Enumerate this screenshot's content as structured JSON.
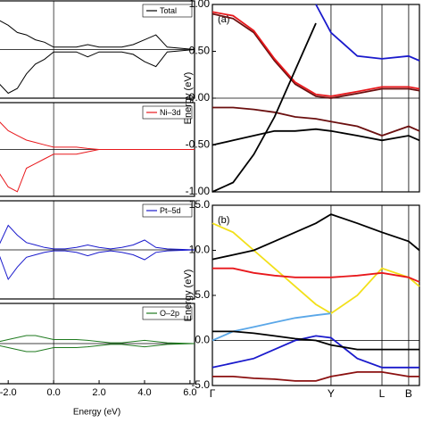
{
  "chart_data": [
    {
      "type": "line",
      "x": [
        -2.4,
        -2.0,
        -1.6,
        -1.2,
        -0.8,
        -0.4,
        0.0,
        0.5,
        1.0,
        1.5,
        2.0,
        2.5,
        3.0,
        3.5,
        4.0,
        4.5,
        5.0,
        6.2
      ],
      "xlim": [
        -2.4,
        6.2
      ],
      "ylim": [
        -1,
        1
      ],
      "legend": "top-right",
      "series": [
        {
          "name": "Total",
          "color": "#000000",
          "values": [
            0.6,
            0.5,
            0.35,
            0.3,
            0.2,
            0.15,
            0.05,
            0.05,
            0.05,
            0.1,
            0.05,
            0.05,
            0.05,
            0.1,
            0.2,
            0.3,
            0.05,
            0.0
          ]
        },
        {
          "color": "#000000",
          "values": [
            -0.7,
            -0.9,
            -0.8,
            -0.5,
            -0.3,
            -0.2,
            -0.05,
            -0.05,
            -0.05,
            -0.15,
            -0.05,
            -0.05,
            -0.05,
            -0.1,
            -0.25,
            -0.35,
            -0.05,
            0.0
          ]
        }
      ]
    },
    {
      "type": "line",
      "x": [
        -2.4,
        -2.0,
        -1.6,
        -1.2,
        -0.8,
        -0.4,
        0.0,
        0.5,
        1.0,
        1.5,
        2.0,
        2.5,
        3.0,
        3.5,
        4.0,
        4.5,
        5.0,
        6.2
      ],
      "xlim": [
        -2.4,
        6.2
      ],
      "ylim": [
        -1,
        1
      ],
      "legend": "top-right",
      "series": [
        {
          "name": "Ni–3d",
          "color": "#e8181c",
          "values": [
            0.6,
            0.4,
            0.3,
            0.2,
            0.15,
            0.1,
            0.05,
            0.05,
            0.05,
            0.02,
            0,
            0,
            0,
            0,
            0,
            0,
            0,
            0
          ]
        },
        {
          "color": "#e8181c",
          "values": [
            -0.5,
            -0.8,
            -0.9,
            -0.4,
            -0.3,
            -0.2,
            -0.1,
            -0.1,
            -0.1,
            -0.05,
            0,
            0,
            0,
            0,
            0,
            0,
            0,
            0
          ]
        }
      ]
    },
    {
      "type": "line",
      "x": [
        -2.4,
        -2.0,
        -1.6,
        -1.2,
        -0.8,
        -0.4,
        0.0,
        0.5,
        1.0,
        1.5,
        2.0,
        2.5,
        3.0,
        3.5,
        4.0,
        4.5,
        5.0,
        6.2
      ],
      "xlim": [
        -2.4,
        6.2
      ],
      "ylim": [
        -1,
        1
      ],
      "legend": "top-right",
      "series": [
        {
          "name": "Pt–5d",
          "color": "#1a1acc",
          "values": [
            0.1,
            0.5,
            0.3,
            0.15,
            0.1,
            0.05,
            0.02,
            0.02,
            0.05,
            0.1,
            0.05,
            0.02,
            0.05,
            0.1,
            0.2,
            0.05,
            0.02,
            0
          ]
        },
        {
          "color": "#1a1acc",
          "values": [
            -0.1,
            -0.6,
            -0.35,
            -0.15,
            -0.1,
            -0.05,
            -0.02,
            -0.02,
            -0.05,
            -0.12,
            -0.05,
            -0.02,
            -0.05,
            -0.1,
            -0.2,
            -0.05,
            -0.02,
            0
          ]
        }
      ]
    },
    {
      "type": "line",
      "x": [
        -2.4,
        -2.0,
        -1.6,
        -1.2,
        -0.8,
        -0.4,
        0.0,
        0.5,
        1.0,
        1.5,
        2.0,
        2.5,
        3.0,
        3.5,
        4.0,
        4.5,
        5.0,
        6.2
      ],
      "xlim": [
        -2.4,
        6.2
      ],
      "ylim": [
        -1,
        1
      ],
      "legend": "top-right",
      "xlabel": "Energy (eV)",
      "xticks": [
        {
          "value": -2.0,
          "label": "-2.0"
        },
        {
          "value": 0.0,
          "label": "0.0"
        },
        {
          "value": 2.0,
          "label": "2.0"
        },
        {
          "value": 4.0,
          "label": "4.0"
        },
        {
          "value": 6.0,
          "label": "6.0"
        }
      ],
      "series": [
        {
          "name": "O–2p",
          "color": "#1f7a1f",
          "values": [
            0.05,
            0.1,
            0.15,
            0.2,
            0.2,
            0.15,
            0.1,
            0.1,
            0.1,
            0.08,
            0.05,
            0.02,
            0.02,
            0.05,
            0.08,
            0.05,
            0.02,
            0
          ]
        },
        {
          "color": "#1f7a1f",
          "values": [
            -0.05,
            -0.1,
            -0.15,
            -0.2,
            -0.2,
            -0.15,
            -0.1,
            -0.1,
            -0.1,
            -0.08,
            -0.05,
            -0.02,
            -0.02,
            -0.05,
            -0.08,
            -0.05,
            -0.02,
            0
          ]
        }
      ]
    },
    {
      "type": "line",
      "title": "(a)",
      "ylabel": "Energy (eV)",
      "x": [
        0,
        0.1,
        0.2,
        0.3,
        0.4,
        0.5,
        0.573,
        0.7,
        0.819,
        0.948,
        1.0
      ],
      "xlim": [
        0,
        1
      ],
      "vlines": [
        0.573,
        0.819,
        0.948
      ],
      "ylim": [
        -1,
        1
      ],
      "yticks": [
        {
          "value": -1,
          "label": "-1.00"
        },
        {
          "value": -0.5,
          "label": "-0.50"
        },
        {
          "value": 0,
          "label": "0.00"
        },
        {
          "value": 0.5,
          "label": "0.50"
        },
        {
          "value": 1,
          "label": "1.00"
        }
      ],
      "series": [
        {
          "color": "#6b0f0f",
          "values": [
            0.9,
            0.85,
            0.7,
            0.4,
            0.15,
            0.02,
            0.0,
            0.05,
            0.1,
            0.1,
            0.08
          ]
        },
        {
          "color": "#e8181c",
          "values": [
            0.92,
            0.88,
            0.72,
            0.42,
            0.17,
            0.04,
            0.02,
            0.07,
            0.12,
            0.12,
            0.1
          ]
        },
        {
          "color": "#1a1acc",
          "values": [
            null,
            null,
            null,
            null,
            null,
            1.0,
            0.7,
            0.45,
            0.42,
            0.45,
            0.4
          ]
        },
        {
          "color": "#000000",
          "values": [
            -0.5,
            -0.45,
            -0.4,
            -0.35,
            -0.35,
            -0.33,
            -0.35,
            -0.4,
            -0.45,
            -0.4,
            -0.45
          ]
        },
        {
          "color": "#6b0f0f",
          "values": [
            -0.1,
            -0.1,
            -0.12,
            -0.15,
            -0.2,
            -0.22,
            -0.25,
            -0.3,
            -0.4,
            -0.3,
            -0.35
          ]
        },
        {
          "color": "#000000",
          "values": [
            -1.0,
            -0.9,
            -0.6,
            -0.2,
            0.3,
            0.8,
            null,
            null,
            null,
            null,
            null
          ]
        }
      ]
    },
    {
      "type": "line",
      "title": "(b)",
      "ylabel": "Energy (eV)",
      "x": [
        0,
        0.1,
        0.2,
        0.3,
        0.4,
        0.5,
        0.573,
        0.7,
        0.819,
        0.948,
        1.0
      ],
      "xlim": [
        0,
        1
      ],
      "xticks": [
        {
          "value": 0,
          "label": "Γ"
        },
        {
          "value": 0.573,
          "label": "Y"
        },
        {
          "value": 0.819,
          "label": "L"
        },
        {
          "value": 0.948,
          "label": "B"
        }
      ],
      "ylim": [
        -5,
        15
      ],
      "yticks": [
        {
          "value": -5,
          "label": "-5.0"
        },
        {
          "value": 0,
          "label": "0.0"
        },
        {
          "value": 5,
          "label": "5.0"
        },
        {
          "value": 10,
          "label": "10.0"
        },
        {
          "value": 15,
          "label": "15.0"
        }
      ],
      "series": [
        {
          "color": "#f2e01a",
          "values": [
            13,
            12,
            10,
            8,
            6,
            4,
            3,
            5,
            8,
            7,
            6
          ]
        },
        {
          "color": "#e8181c",
          "values": [
            8,
            8,
            7.5,
            7.2,
            7,
            7,
            7,
            7.2,
            7.5,
            7,
            6.5
          ]
        },
        {
          "color": "#5aa7e8",
          "values": [
            0,
            1,
            1.5,
            2,
            2.5,
            2.8,
            3,
            null,
            null,
            null,
            null
          ]
        },
        {
          "color": "#1a1acc",
          "values": [
            -3,
            -2.5,
            -2,
            -1,
            0,
            0.5,
            0.3,
            -2,
            -3,
            -3,
            -3
          ]
        },
        {
          "color": "#8b1010",
          "values": [
            -4,
            -4,
            -4.2,
            -4.3,
            -4.5,
            -4.5,
            -4,
            -3.5,
            -3.5,
            -4,
            -4
          ]
        },
        {
          "color": "#000000",
          "values": [
            9,
            9.5,
            10,
            11,
            12,
            13,
            14,
            13,
            12,
            11,
            10
          ]
        },
        {
          "color": "#000000",
          "values": [
            1,
            1,
            0.8,
            0.5,
            0.2,
            0,
            -0.5,
            -1,
            -1,
            -1,
            -1
          ]
        }
      ]
    }
  ]
}
